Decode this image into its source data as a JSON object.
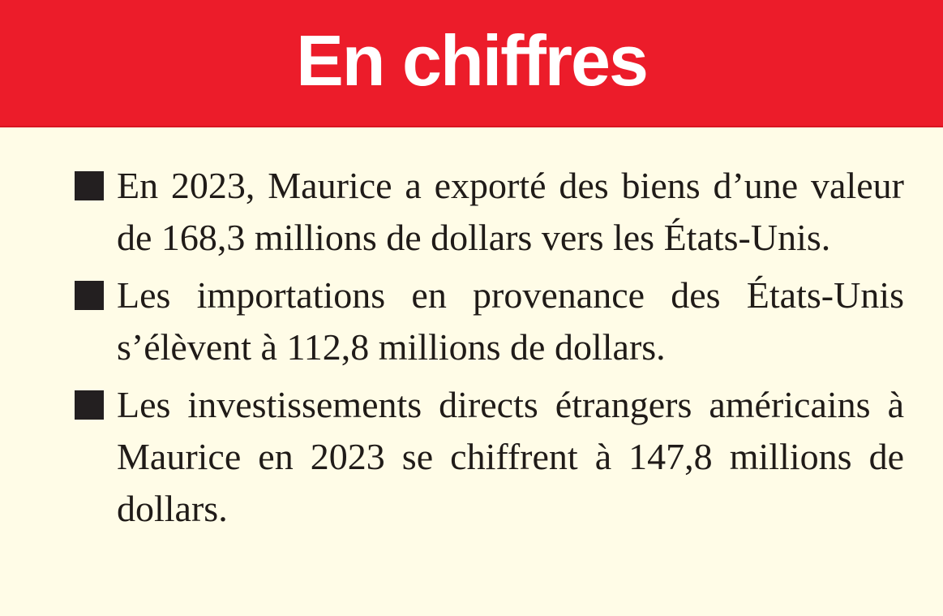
{
  "header": {
    "title": "En chiffres"
  },
  "colors": {
    "header_background": "#EC1C2A",
    "body_background": "#FFFCE7",
    "title_color": "#FFFFFF",
    "text_color": "#201B18",
    "bullet_color": "#231F20"
  },
  "body": {
    "items": [
      {
        "text": "En 2023, Maurice a exporté des biens d’une valeur de 168,3 millions de dollars vers les États-Unis."
      },
      {
        "text": "Les importations en provenance des États-Unis s’élèvent à 112,8 millions de dollars."
      },
      {
        "text": "Les investissements directs étrangers américains à Maurice en 2023 se chiffrent à 147,8 millions de dollars."
      }
    ]
  }
}
